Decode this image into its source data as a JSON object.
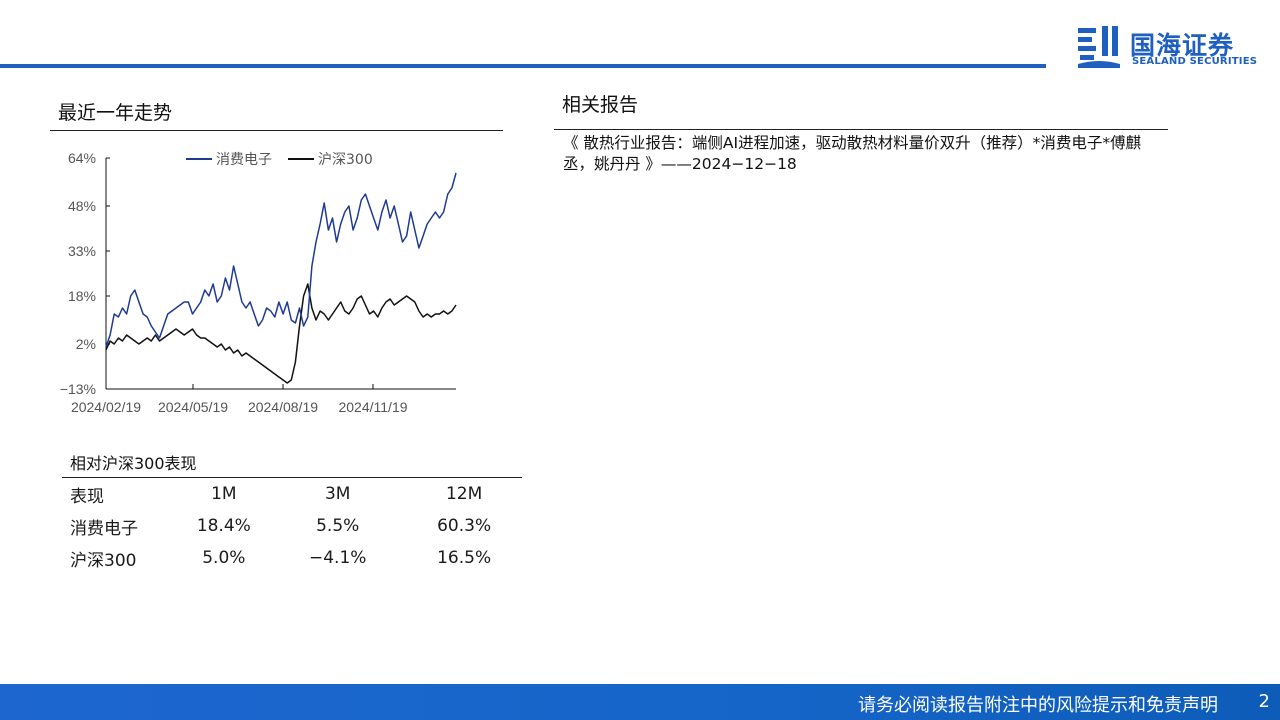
{
  "header": {
    "logo_cn": "国海证券",
    "logo_en": "SEALAND SECURITIES",
    "brand_color": "#1f5fbf"
  },
  "trend_section": {
    "title": "最近一年走势"
  },
  "chart_data": {
    "type": "line",
    "title": "",
    "xlabel": "",
    "ylabel": "",
    "ylim": [
      -13,
      64
    ],
    "y_ticks": [
      "64%",
      "48%",
      "33%",
      "18%",
      "2%",
      "−13%"
    ],
    "y_tick_values": [
      64,
      48,
      33,
      18,
      2,
      -13
    ],
    "x_ticks": [
      "2024/02/19",
      "2024/05/19",
      "2024/08/19",
      "2024/11/19"
    ],
    "legend_position": "top",
    "series": [
      {
        "name": "消费电子",
        "color": "#1f3a93",
        "values": [
          1,
          5,
          12,
          11,
          14,
          12,
          18,
          20,
          16,
          12,
          11,
          8,
          6,
          4,
          8,
          12,
          13,
          14,
          15,
          16,
          16,
          12,
          14,
          16,
          20,
          18,
          22,
          16,
          18,
          24,
          20,
          28,
          22,
          16,
          14,
          16,
          12,
          8,
          10,
          14,
          13,
          11,
          16,
          12,
          16,
          10,
          9,
          14,
          8,
          11,
          28,
          36,
          42,
          49,
          40,
          44,
          36,
          42,
          46,
          48,
          40,
          44,
          50,
          52,
          48,
          44,
          40,
          46,
          50,
          44,
          48,
          42,
          36,
          38,
          46,
          40,
          34,
          38,
          42,
          44,
          46,
          44,
          46,
          52,
          54,
          59
        ]
      },
      {
        "name": "沪深300",
        "color": "#111111",
        "values": [
          0,
          3,
          2,
          4,
          3,
          5,
          4,
          3,
          2,
          3,
          4,
          3,
          5,
          3,
          4,
          5,
          6,
          7,
          6,
          5,
          6,
          7,
          5,
          4,
          4,
          3,
          2,
          1,
          2,
          0,
          1,
          -1,
          0,
          -2,
          -1,
          -2,
          -3,
          -4,
          -5,
          -6,
          -7,
          -8,
          -9,
          -10,
          -11,
          -10,
          -4,
          8,
          18,
          22,
          14,
          10,
          13,
          12,
          10,
          12,
          14,
          16,
          13,
          12,
          14,
          17,
          18,
          15,
          12,
          13,
          11,
          14,
          16,
          17,
          15,
          16,
          17,
          18,
          17,
          16,
          13,
          11,
          12,
          11,
          12,
          12,
          13,
          12,
          13,
          15
        ]
      }
    ]
  },
  "performance_table": {
    "title": "相对沪深300表现",
    "headers": [
      "表现",
      "1M",
      "3M",
      "12M"
    ],
    "rows": [
      [
        "消费电子",
        "18.4%",
        "5.5%",
        "60.3%"
      ],
      [
        "沪深300",
        "5.0%",
        "−4.1%",
        "16.5%"
      ]
    ]
  },
  "related_section": {
    "title": "相关报告",
    "report": "《 散热行业报告：端侧AI进程加速，驱动散热材料量价双升（推荐）*消费电子*傅麒丞，姚丹丹 》——2024−12−18"
  },
  "footer": {
    "disclaimer": "请务必阅读报告附注中的风险提示和免责声明",
    "page_number": "2"
  }
}
